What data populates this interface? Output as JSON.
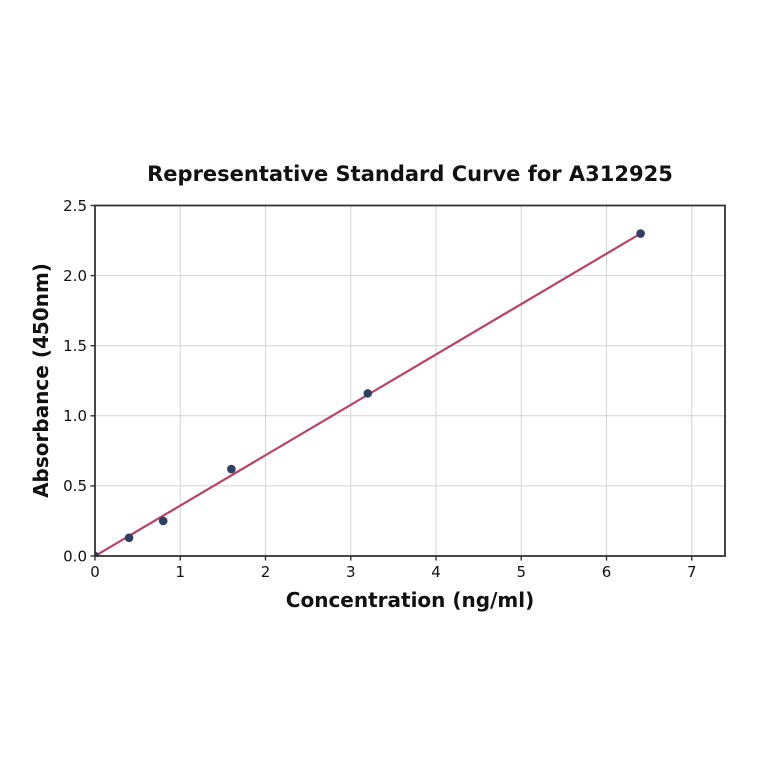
{
  "chart_data": {
    "type": "scatter",
    "title": "Representative Standard Curve for A312925",
    "xlabel": "Concentration (ng/ml)",
    "ylabel": "Absorbance (450nm)",
    "points": {
      "x": [
        0,
        0.4,
        0.8,
        1.6,
        3.2,
        6.4
      ],
      "y": [
        0.0,
        0.13,
        0.25,
        0.62,
        1.16,
        2.3
      ]
    },
    "fit_line": {
      "x": [
        0,
        6.4
      ],
      "y": [
        0.0,
        2.3
      ]
    },
    "xlim": [
      0,
      7.39
    ],
    "ylim": [
      0,
      2.5
    ],
    "x_ticks": [
      0,
      1,
      2,
      3,
      4,
      5,
      6,
      7
    ],
    "x_tick_labels": [
      "0",
      "1",
      "2",
      "3",
      "4",
      "5",
      "6",
      "7"
    ],
    "y_ticks": [
      0.0,
      0.5,
      1.0,
      1.5,
      2.0,
      2.5
    ],
    "y_tick_labels": [
      "0.0",
      "0.5",
      "1.0",
      "1.5",
      "2.0",
      "2.5"
    ],
    "grid": true,
    "legend": "none",
    "colors": {
      "line": "#b64467",
      "marker": "#2e3f63",
      "grid": "#d3d3d3",
      "spine": "#333333",
      "text": "#111111",
      "background": "#ffffff"
    }
  }
}
